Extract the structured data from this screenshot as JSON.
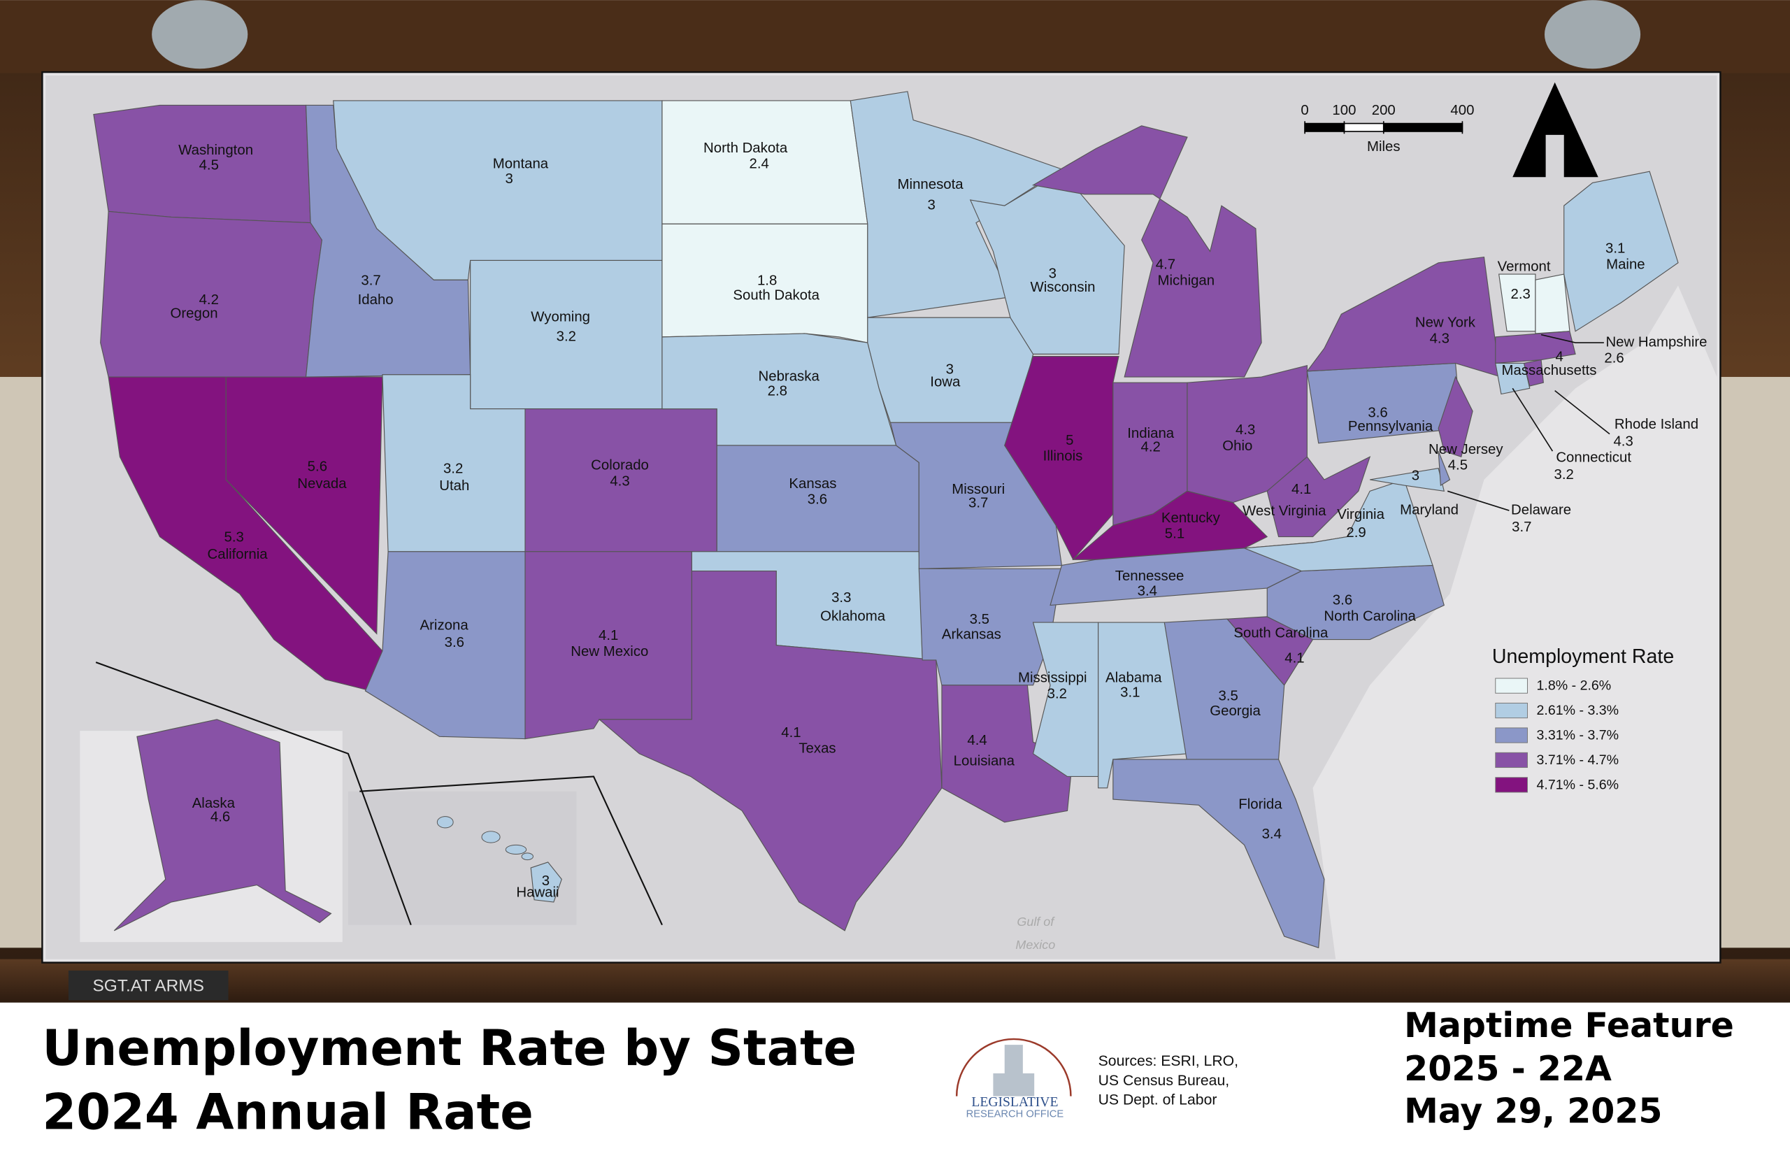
{
  "map": {
    "title": "Unemployment Rate by State",
    "subtitle": "2024 Annual Rate",
    "sources": [
      "Sources:  ESRI, LRO,",
      "US Census Bureau,",
      "US Dept. of Labor"
    ],
    "logo": [
      "LEGISLATIVE",
      "RESEARCH OFFICE"
    ],
    "feature": [
      "Maptime Feature",
      "2025 - 22A",
      "May 29, 2025"
    ],
    "sign": "SGT.AT ARMS",
    "water_label": [
      "Gulf of",
      "Mexico"
    ],
    "scale_bar": {
      "ticks": [
        0,
        100,
        200,
        400
      ],
      "unit": "Miles"
    },
    "legend": {
      "title": "Unemployment Rate",
      "items": [
        {
          "label": "1.8% - 2.6%",
          "color": "#eaf6f7"
        },
        {
          "label": "2.61% - 3.3%",
          "color": "#b1cde3"
        },
        {
          "label": "3.31% - 3.7%",
          "color": "#8b97c8"
        },
        {
          "label": "3.71% - 4.7%",
          "color": "#8852a6"
        },
        {
          "label": "4.71% - 5.6%",
          "color": "#83137f"
        }
      ]
    },
    "states": [
      {
        "name": "Washington",
        "value": 4.5,
        "color": "#8852a6"
      },
      {
        "name": "Oregon",
        "value": 4.2,
        "color": "#8852a6"
      },
      {
        "name": "California",
        "value": 5.3,
        "color": "#83137f"
      },
      {
        "name": "Nevada",
        "value": 5.6,
        "color": "#83137f"
      },
      {
        "name": "Idaho",
        "value": 3.7,
        "color": "#8b97c8"
      },
      {
        "name": "Montana",
        "value": 3,
        "color": "#b1cde3"
      },
      {
        "name": "Wyoming",
        "value": 3.2,
        "color": "#b1cde3"
      },
      {
        "name": "Utah",
        "value": 3.2,
        "color": "#b1cde3"
      },
      {
        "name": "Colorado",
        "value": 4.3,
        "color": "#8852a6"
      },
      {
        "name": "Arizona",
        "value": 3.6,
        "color": "#8b97c8"
      },
      {
        "name": "New Mexico",
        "value": 4.1,
        "color": "#8852a6"
      },
      {
        "name": "North Dakota",
        "value": 2.4,
        "color": "#eaf6f7"
      },
      {
        "name": "South Dakota",
        "value": 1.8,
        "color": "#eaf6f7"
      },
      {
        "name": "Nebraska",
        "value": 2.8,
        "color": "#b1cde3"
      },
      {
        "name": "Kansas",
        "value": 3.6,
        "color": "#8b97c8"
      },
      {
        "name": "Oklahoma",
        "value": 3.3,
        "color": "#b1cde3"
      },
      {
        "name": "Texas",
        "value": 4.1,
        "color": "#8852a6"
      },
      {
        "name": "Minnesota",
        "value": 3,
        "color": "#b1cde3"
      },
      {
        "name": "Iowa",
        "value": 3,
        "color": "#b1cde3"
      },
      {
        "name": "Missouri",
        "value": 3.7,
        "color": "#8b97c8"
      },
      {
        "name": "Arkansas",
        "value": 3.5,
        "color": "#8b97c8"
      },
      {
        "name": "Louisiana",
        "value": 4.4,
        "color": "#8852a6"
      },
      {
        "name": "Wisconsin",
        "value": 3,
        "color": "#b1cde3"
      },
      {
        "name": "Illinois",
        "value": 5,
        "color": "#83137f"
      },
      {
        "name": "Michigan",
        "value": 4.7,
        "color": "#8852a6"
      },
      {
        "name": "Indiana",
        "value": 4.2,
        "color": "#8852a6"
      },
      {
        "name": "Ohio",
        "value": 4.3,
        "color": "#8852a6"
      },
      {
        "name": "Kentucky",
        "value": 5.1,
        "color": "#83137f"
      },
      {
        "name": "Tennessee",
        "value": 3.4,
        "color": "#8b97c8"
      },
      {
        "name": "Mississippi",
        "value": 3.2,
        "color": "#b1cde3"
      },
      {
        "name": "Alabama",
        "value": 3.1,
        "color": "#b1cde3"
      },
      {
        "name": "Georgia",
        "value": 3.5,
        "color": "#8b97c8"
      },
      {
        "name": "Florida",
        "value": 3.4,
        "color": "#8b97c8"
      },
      {
        "name": "South Carolina",
        "value": 4.1,
        "color": "#8852a6"
      },
      {
        "name": "North Carolina",
        "value": 3.6,
        "color": "#8b97c8"
      },
      {
        "name": "Virginia",
        "value": 2.9,
        "color": "#b1cde3"
      },
      {
        "name": "West Virginia",
        "value": 4.1,
        "color": "#8852a6"
      },
      {
        "name": "Pennsylvania",
        "value": 3.6,
        "color": "#8b97c8"
      },
      {
        "name": "New York",
        "value": 4.3,
        "color": "#8852a6"
      },
      {
        "name": "New Jersey",
        "value": 4.5,
        "color": "#8852a6"
      },
      {
        "name": "Maryland",
        "value": 3,
        "color": "#b1cde3"
      },
      {
        "name": "Delaware",
        "value": 3.7,
        "color": "#8b97c8"
      },
      {
        "name": "Vermont",
        "value": 2.3,
        "color": "#eaf6f7"
      },
      {
        "name": "New Hampshire",
        "value": 2.6,
        "color": "#eaf6f7"
      },
      {
        "name": "Maine",
        "value": 3.1,
        "color": "#b1cde3"
      },
      {
        "name": "Massachusetts",
        "value": 4,
        "color": "#8852a6"
      },
      {
        "name": "Connecticut",
        "value": 3.2,
        "color": "#b1cde3"
      },
      {
        "name": "Rhode Island",
        "value": 4.3,
        "color": "#8852a6"
      },
      {
        "name": "Alaska",
        "value": 4.6,
        "color": "#8852a6"
      },
      {
        "name": "Hawaii",
        "value": 3,
        "color": "#b1cde3"
      }
    ]
  }
}
